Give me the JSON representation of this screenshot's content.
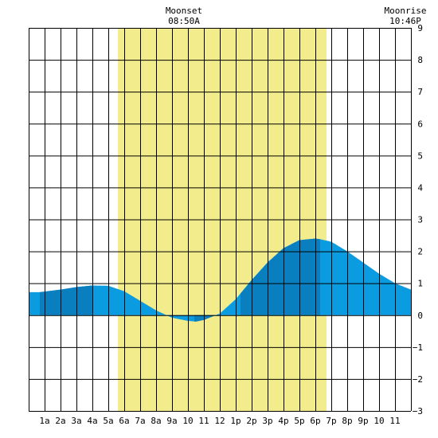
{
  "chart_data": {
    "type": "area",
    "moonset": {
      "label": "Moonset",
      "time": "08:50A"
    },
    "moonrise": {
      "label": "Moonrise",
      "time": "10:46P"
    },
    "x_tick_labels": [
      "1a",
      "2a",
      "3a",
      "4a",
      "5a",
      "6a",
      "7a",
      "8a",
      "9a",
      "10",
      "11",
      "12",
      "1p",
      "2p",
      "3p",
      "4p",
      "5p",
      "6p",
      "7p",
      "8p",
      "9p",
      "10",
      "11"
    ],
    "y_tick_labels": [
      "9",
      "8",
      "7",
      "6",
      "5",
      "4",
      "3",
      "2",
      "1",
      "0",
      "−1",
      "−2",
      "−3"
    ],
    "xlim": [
      0,
      24
    ],
    "ylim": [
      -3,
      9
    ],
    "daylight_hours": [
      5.6,
      18.7
    ],
    "tide_series": {
      "x": [
        0,
        0.7,
        1,
        2,
        3,
        4,
        5,
        6,
        7,
        8,
        9,
        10,
        10.5,
        11,
        12,
        13,
        14,
        15,
        16,
        17,
        18,
        18.3,
        19,
        20,
        21,
        22,
        23,
        24
      ],
      "y": [
        0.72,
        0.72,
        0.74,
        0.8,
        0.88,
        0.93,
        0.92,
        0.75,
        0.45,
        0.15,
        -0.08,
        -0.18,
        -0.2,
        -0.15,
        0.05,
        0.5,
        1.1,
        1.65,
        2.1,
        2.35,
        2.4,
        2.38,
        2.3,
        2.0,
        1.65,
        1.3,
        1.0,
        0.8
      ]
    },
    "dark_segments": [
      [
        0.7,
        4.0
      ],
      [
        10.4,
        11.9
      ],
      [
        13.3,
        18.3
      ]
    ],
    "colors": {
      "daylight": "#f3ec8c",
      "tide_light": "#0a9be0",
      "tide_dark": "#0a7fbf",
      "grid": "#000000",
      "background": "#ffffff"
    },
    "grid": true
  }
}
